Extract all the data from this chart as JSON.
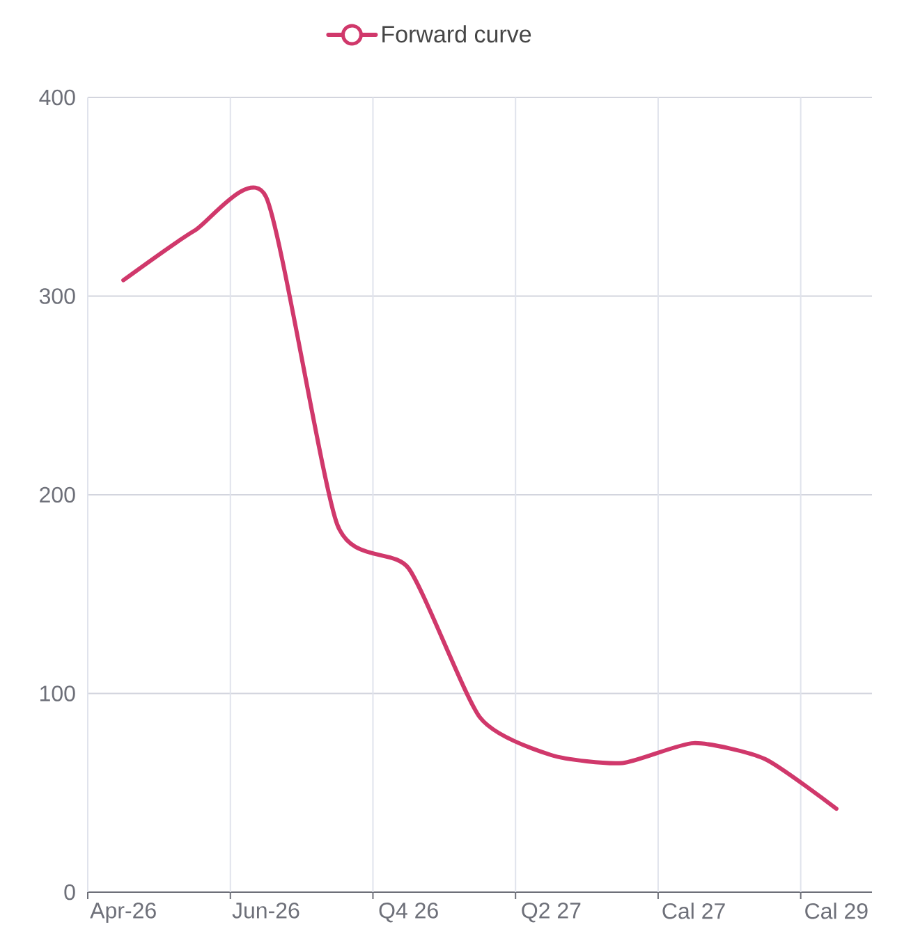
{
  "chart_data": {
    "type": "line",
    "categories": [
      "Apr-26",
      null,
      "Jun-26",
      null,
      "Q4 26",
      null,
      "Q2 27",
      null,
      "Cal 27",
      null,
      "Cal 29"
    ],
    "series": [
      {
        "name": "Forward curve",
        "color": "#d0386b",
        "values": [
          308,
          333,
          350,
          185,
          163,
          88,
          69,
          65,
          75,
          67,
          42
        ]
      }
    ],
    "ylim": [
      0,
      400
    ],
    "yticks": [
      0,
      100,
      200,
      300,
      400
    ],
    "grid": true,
    "legend": "top"
  }
}
